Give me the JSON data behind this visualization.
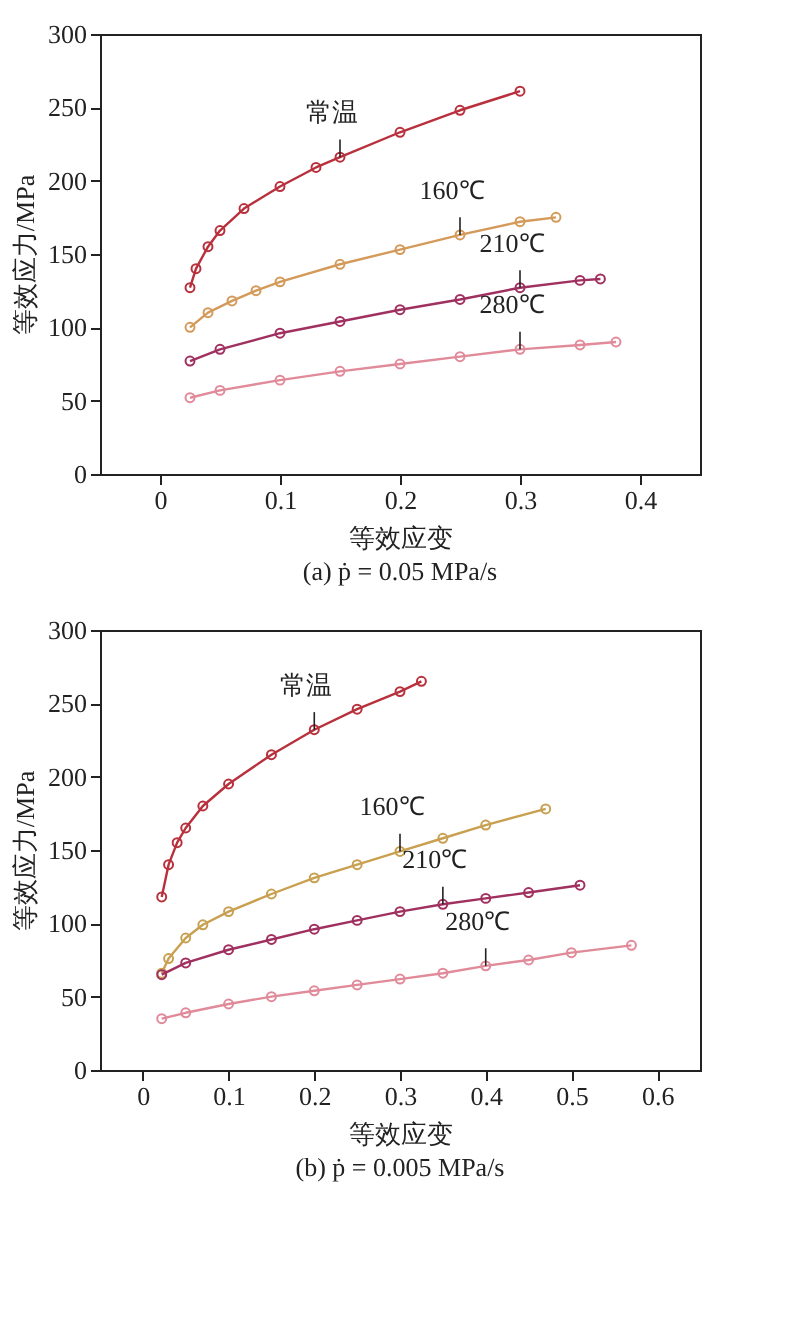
{
  "chart_data": [
    {
      "type": "line",
      "title": "(a) ṗ = 0.05 MPa/s",
      "xlabel": "等效应变",
      "ylabel": "等效应力/MPa",
      "xlim": [
        -0.05,
        0.45
      ],
      "xticks": [
        0,
        0.1,
        0.2,
        0.3,
        0.4
      ],
      "ylim": [
        0,
        300
      ],
      "yticks": [
        0,
        50,
        100,
        150,
        200,
        250,
        300
      ],
      "marker": "circle",
      "series": [
        {
          "name": "常温",
          "color": "#b8303c",
          "x": [
            0.025,
            0.03,
            0.04,
            0.05,
            0.07,
            0.1,
            0.13,
            0.15,
            0.2,
            0.25,
            0.3
          ],
          "values": [
            127,
            140,
            155,
            166,
            181,
            196,
            209,
            216,
            233,
            248,
            261
          ]
        },
        {
          "name": "160℃",
          "color": "#d49a5a",
          "x": [
            0.025,
            0.04,
            0.06,
            0.08,
            0.1,
            0.15,
            0.2,
            0.25,
            0.3,
            0.33
          ],
          "values": [
            100,
            110,
            118,
            125,
            131,
            143,
            153,
            163,
            172,
            175
          ]
        },
        {
          "name": "210℃",
          "color": "#a03060",
          "x": [
            0.025,
            0.05,
            0.1,
            0.15,
            0.2,
            0.25,
            0.3,
            0.35,
            0.367
          ],
          "values": [
            77,
            85,
            96,
            104,
            112,
            119,
            127,
            132,
            133
          ]
        },
        {
          "name": "280℃",
          "color": "#e08a9a",
          "x": [
            0.025,
            0.05,
            0.1,
            0.15,
            0.2,
            0.25,
            0.3,
            0.35,
            0.38
          ],
          "values": [
            52,
            57,
            64,
            70,
            75,
            80,
            85,
            88,
            90
          ]
        }
      ]
    },
    {
      "type": "line",
      "title": "(b) ṗ = 0.005 MPa/s",
      "xlabel": "等效应变",
      "ylabel": "等效应力/MPa",
      "xlim": [
        -0.05,
        0.65
      ],
      "xticks": [
        0,
        0.1,
        0.2,
        0.3,
        0.4,
        0.5,
        0.6
      ],
      "ylim": [
        0,
        300
      ],
      "yticks": [
        0,
        50,
        100,
        150,
        200,
        250,
        300
      ],
      "marker": "circle",
      "series": [
        {
          "name": "常温",
          "color": "#b8303c",
          "x": [
            0.022,
            0.03,
            0.04,
            0.05,
            0.07,
            0.1,
            0.15,
            0.2,
            0.25,
            0.3,
            0.325
          ],
          "values": [
            118,
            140,
            155,
            165,
            180,
            195,
            215,
            232,
            246,
            258,
            265
          ]
        },
        {
          "name": "160℃",
          "color": "#c8a050",
          "x": [
            0.022,
            0.03,
            0.05,
            0.07,
            0.1,
            0.15,
            0.2,
            0.25,
            0.3,
            0.35,
            0.4,
            0.47
          ],
          "values": [
            66,
            76,
            90,
            99,
            108,
            120,
            131,
            140,
            149,
            158,
            167,
            178
          ]
        },
        {
          "name": "210℃",
          "color": "#a03060",
          "x": [
            0.022,
            0.05,
            0.1,
            0.15,
            0.2,
            0.25,
            0.3,
            0.35,
            0.4,
            0.45,
            0.51
          ],
          "values": [
            65,
            73,
            82,
            89,
            96,
            102,
            108,
            113,
            117,
            121,
            126
          ]
        },
        {
          "name": "280℃",
          "color": "#e08a9a",
          "x": [
            0.022,
            0.05,
            0.1,
            0.15,
            0.2,
            0.25,
            0.3,
            0.35,
            0.4,
            0.45,
            0.5,
            0.57
          ],
          "values": [
            35,
            39,
            45,
            50,
            54,
            58,
            62,
            66,
            71,
            75,
            80,
            85
          ]
        }
      ]
    }
  ]
}
